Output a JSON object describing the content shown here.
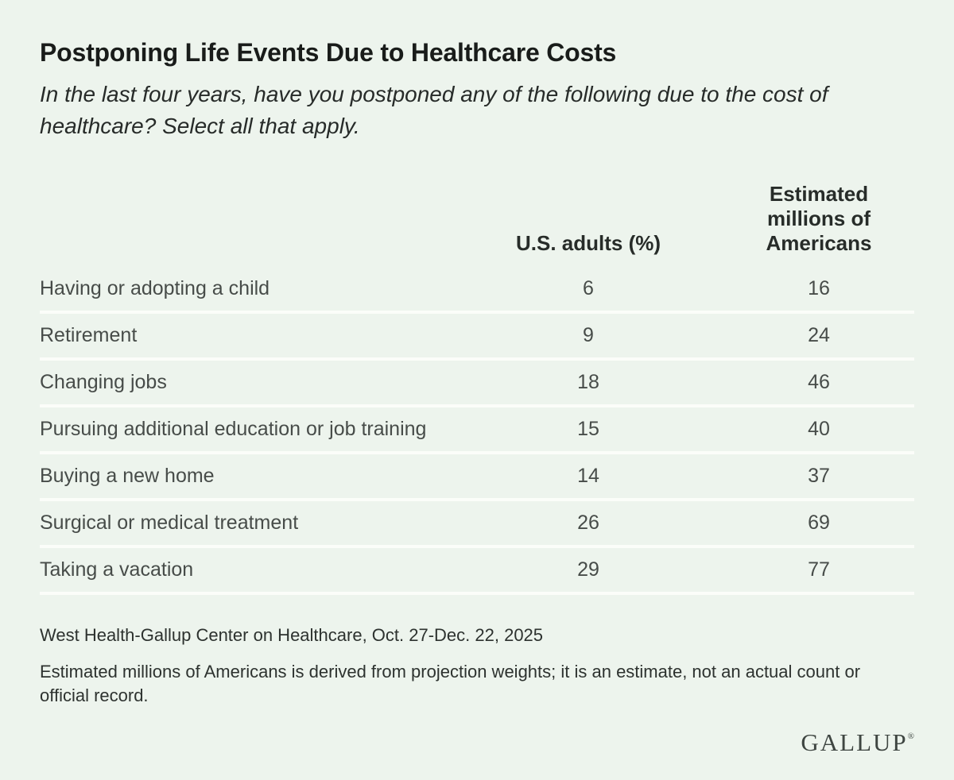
{
  "colors": {
    "background": "#edf4ed",
    "row_separator": "#fbfdf9",
    "title_text": "#191c1a",
    "body_text": "#474c49",
    "header_text": "#272c29",
    "logo_text": "#3e4541"
  },
  "header": {
    "title": "Postponing Life Events Due to Healthcare Costs",
    "subtitle": "In the last four years, have you postponed any of the following due to the cost of healthcare? Select all that apply."
  },
  "chart_data": {
    "type": "table",
    "title": "Postponing Life Events Due to Healthcare Costs",
    "subtitle": "In the last four years, have you postponed any of the following due to the cost of healthcare? Select all that apply.",
    "columns": [
      "U.S. adults (%)",
      "Estimated millions of Americans"
    ],
    "categories": [
      "Having or adopting a child",
      "Retirement",
      "Changing jobs",
      "Pursuing additional education or job training",
      "Buying a new home",
      "Surgical or medical treatment",
      "Taking a vacation"
    ],
    "series": [
      {
        "name": "U.S. adults (%)",
        "values": [
          6,
          9,
          18,
          15,
          14,
          26,
          29
        ]
      },
      {
        "name": "Estimated millions of Americans",
        "values": [
          16,
          24,
          46,
          40,
          37,
          69,
          77
        ]
      }
    ],
    "source": "West Health-Gallup Center on Healthcare, Oct. 27-Dec. 22, 2025",
    "footnote": "Estimated millions of Americans is derived from projection weights; it is an estimate, not an actual count or official record."
  },
  "source": "West Health-Gallup Center on Healthcare, Oct. 27-Dec. 22, 2025",
  "footnote": "Estimated millions of Americans is derived from projection weights; it is an estimate, not an actual count or official record.",
  "logo": {
    "text": "GALLUP",
    "registered_mark": "®"
  }
}
